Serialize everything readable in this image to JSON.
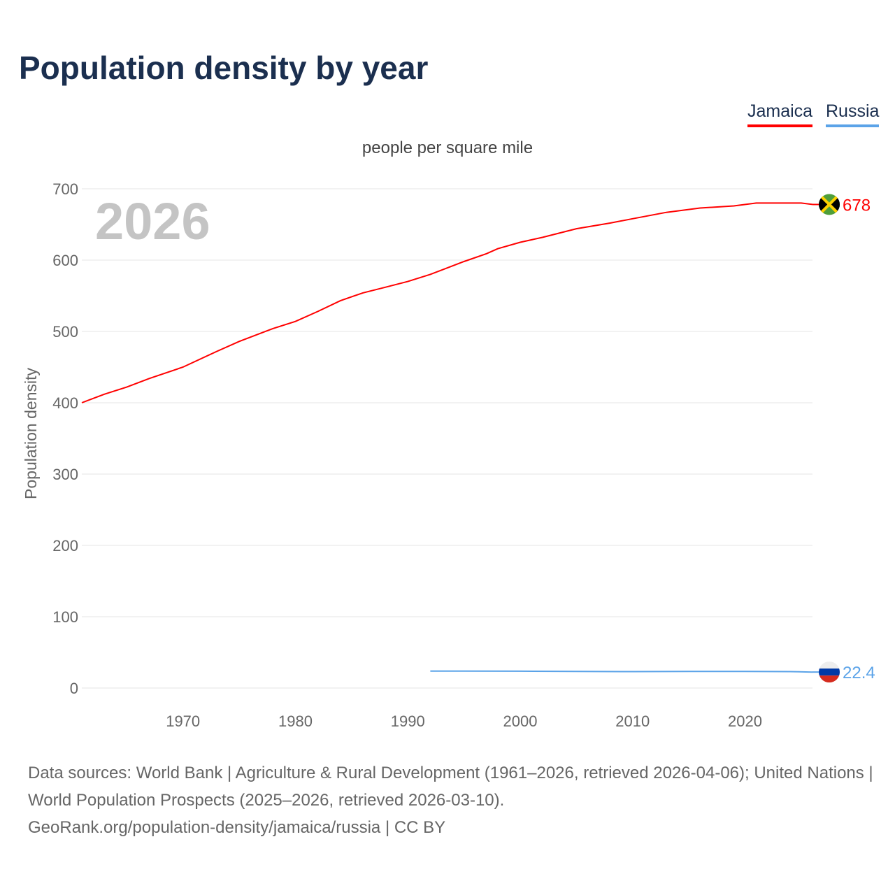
{
  "title": "Population density by year",
  "legend": [
    {
      "label": "Jamaica",
      "color": "#ff0000"
    },
    {
      "label": "Russia",
      "color": "#5ba3e8"
    }
  ],
  "sources": {
    "line1": "Data sources: World Bank | Agriculture & Rural Development (1961–2026, retrieved 2026-04-06); United Nations | World Population Prospects (2025–2026, retrieved 2026-03-10).",
    "line2": "GeoRank.org/population-density/jamaica/russia | CC BY"
  },
  "chart_data": {
    "type": "line",
    "title": "Population density by year",
    "subtitle": "people per square mile",
    "ylabel": "Population density",
    "xlabel": "",
    "year_overlay": "2026",
    "xlim": [
      1961,
      2026
    ],
    "ylim": [
      0,
      700
    ],
    "xticks": [
      1970,
      1980,
      1990,
      2000,
      2010,
      2020
    ],
    "yticks": [
      0,
      100,
      200,
      300,
      400,
      500,
      600,
      700
    ],
    "grid": true,
    "series": [
      {
        "name": "Jamaica",
        "color": "#ff0000",
        "end_label": "678",
        "flag": "jamaica-flag",
        "x": [
          1961,
          1963,
          1965,
          1967,
          1970,
          1973,
          1975,
          1978,
          1980,
          1982,
          1984,
          1986,
          1988,
          1990,
          1992,
          1995,
          1997,
          1998,
          2000,
          2002,
          2005,
          2008,
          2010,
          2013,
          2016,
          2019,
          2021,
          2023,
          2025,
          2026
        ],
        "y": [
          400,
          412,
          422,
          434,
          450,
          472,
          486,
          504,
          514,
          528,
          543,
          554,
          562,
          570,
          580,
          598,
          609,
          616,
          625,
          632,
          644,
          652,
          658,
          667,
          673,
          676,
          680,
          680,
          680,
          678
        ]
      },
      {
        "name": "Russia",
        "color": "#5ba3e8",
        "end_label": "22.4",
        "flag": "russia-flag",
        "x": [
          1992,
          1995,
          2000,
          2005,
          2010,
          2015,
          2020,
          2024,
          2026
        ],
        "y": [
          23.8,
          23.8,
          23.6,
          23.2,
          23.0,
          23.2,
          23.2,
          23.0,
          22.4
        ]
      }
    ]
  }
}
